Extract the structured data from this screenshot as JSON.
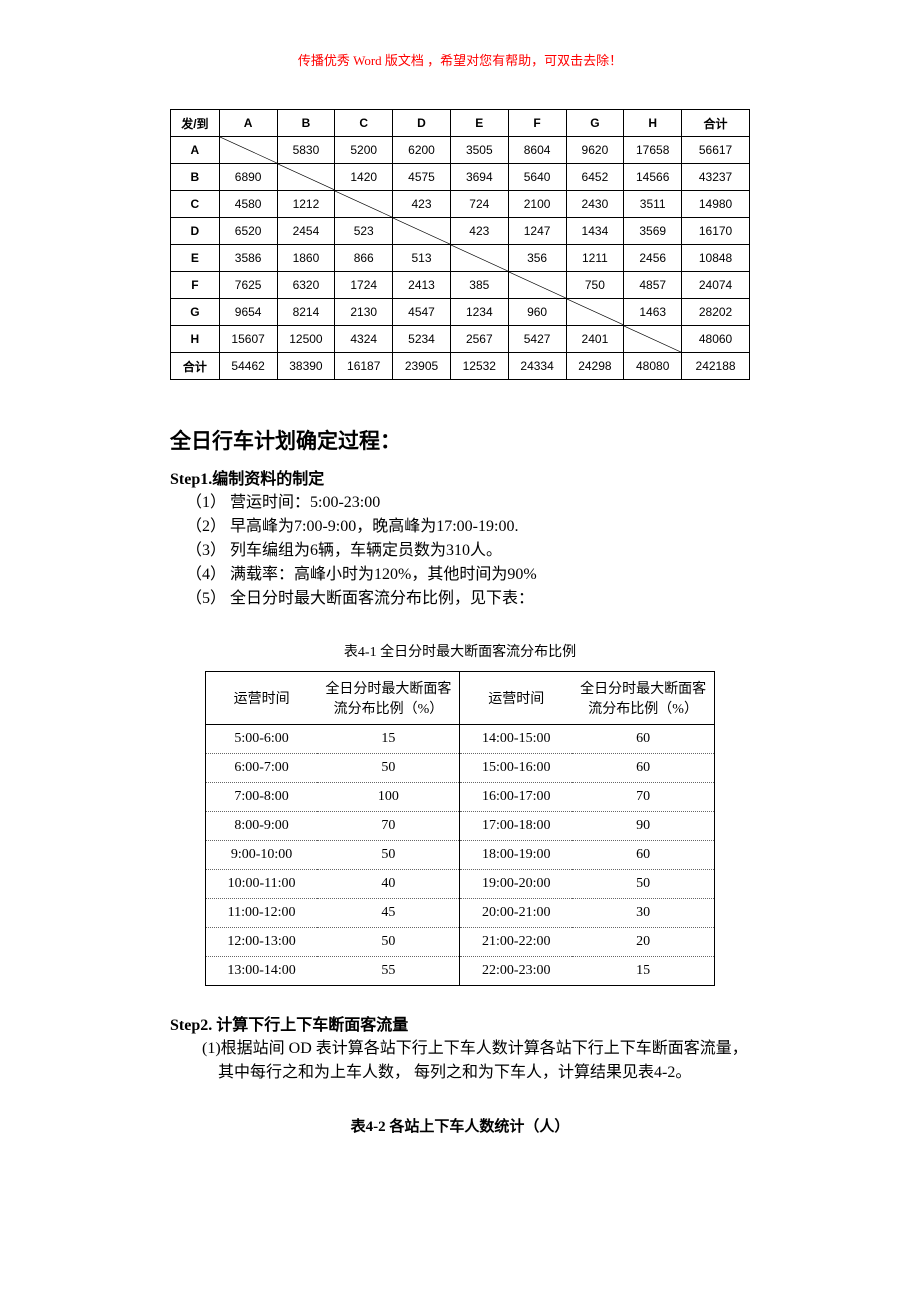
{
  "header_note": "传播优秀 Word 版文档 ，希望对您有帮助，可双击去除！",
  "od_table": {
    "corner_label": "发/到",
    "col_headers": [
      "A",
      "B",
      "C",
      "D",
      "E",
      "F",
      "G",
      "H",
      "合计"
    ],
    "row_headers": [
      "A",
      "B",
      "C",
      "D",
      "E",
      "F",
      "G",
      "H",
      "合计"
    ],
    "cells": [
      [
        "",
        "5830",
        "5200",
        "6200",
        "3505",
        "8604",
        "9620",
        "17658",
        "56617"
      ],
      [
        "6890",
        "",
        "1420",
        "4575",
        "3694",
        "5640",
        "6452",
        "14566",
        "43237"
      ],
      [
        "4580",
        "1212",
        "",
        "423",
        "724",
        "2100",
        "2430",
        "3511",
        "14980"
      ],
      [
        "6520",
        "2454",
        "523",
        "",
        "423",
        "1247",
        "1434",
        "3569",
        "16170"
      ],
      [
        "3586",
        "1860",
        "866",
        "513",
        "",
        "356",
        "1211",
        "2456",
        "10848"
      ],
      [
        "7625",
        "6320",
        "1724",
        "2413",
        "385",
        "",
        "750",
        "4857",
        "24074"
      ],
      [
        "9654",
        "8214",
        "2130",
        "4547",
        "1234",
        "960",
        "",
        "1463",
        "28202"
      ],
      [
        "15607",
        "12500",
        "4324",
        "5234",
        "2567",
        "5427",
        "2401",
        "",
        "48060"
      ],
      [
        "54462",
        "38390",
        "16187",
        "23905",
        "12532",
        "24334",
        "24298",
        "48080",
        "242188"
      ]
    ],
    "diagonal_cells": [
      [
        0,
        0
      ],
      [
        1,
        1
      ],
      [
        2,
        2
      ],
      [
        3,
        3
      ],
      [
        4,
        4
      ],
      [
        5,
        5
      ],
      [
        6,
        6
      ],
      [
        7,
        7
      ]
    ]
  },
  "section_heading": "全日行车计划确定过程：",
  "step1": {
    "title": "Step1.编制资料的制定",
    "items": [
      "（1）  营运时间：5:00-23:00",
      "（2）  早高峰为7:00-9:00，晚高峰为17:00-19:00.",
      "（3）  列车编组为6辆，车辆定员数为310人。",
      "（4）  满载率：高峰小时为120%，其他时间为90%",
      "（5）  全日分时最大断面客流分布比例，见下表："
    ]
  },
  "dist_table": {
    "caption": "表4-1 全日分时最大断面客流分布比例",
    "headers": [
      "运营时间",
      "全日分时最大断面客流分布比例（%）",
      "运营时间",
      "全日分时最大断面客流分布比例（%）"
    ],
    "rows": [
      [
        "5:00-6:00",
        "15",
        "14:00-15:00",
        "60"
      ],
      [
        "6:00-7:00",
        "50",
        "15:00-16:00",
        "60"
      ],
      [
        "7:00-8:00",
        "100",
        "16:00-17:00",
        "70"
      ],
      [
        "8:00-9:00",
        "70",
        "17:00-18:00",
        "90"
      ],
      [
        "9:00-10:00",
        "50",
        "18:00-19:00",
        "60"
      ],
      [
        "10:00-11:00",
        "40",
        "19:00-20:00",
        "50"
      ],
      [
        "11:00-12:00",
        "45",
        "20:00-21:00",
        "30"
      ],
      [
        "12:00-13:00",
        "50",
        "21:00-22:00",
        "20"
      ],
      [
        "13:00-14:00",
        "55",
        "22:00-23:00",
        "15"
      ]
    ]
  },
  "step2": {
    "title": "Step2. 计算下行上下车断面客流量",
    "para1": "(1)根据站间 OD 表计算各站下行上下车人数计算各站下行上下车断面客流量，",
    "para2": "其中每行之和为上车人数，  每列之和为下车人，计算结果见表4-2。",
    "caption": "表4-2 各站上下车人数统计（人）"
  },
  "colors": {
    "header_note": "#ff0000",
    "text": "#000000",
    "border": "#000000",
    "dotted": "#666666",
    "background": "#ffffff"
  }
}
